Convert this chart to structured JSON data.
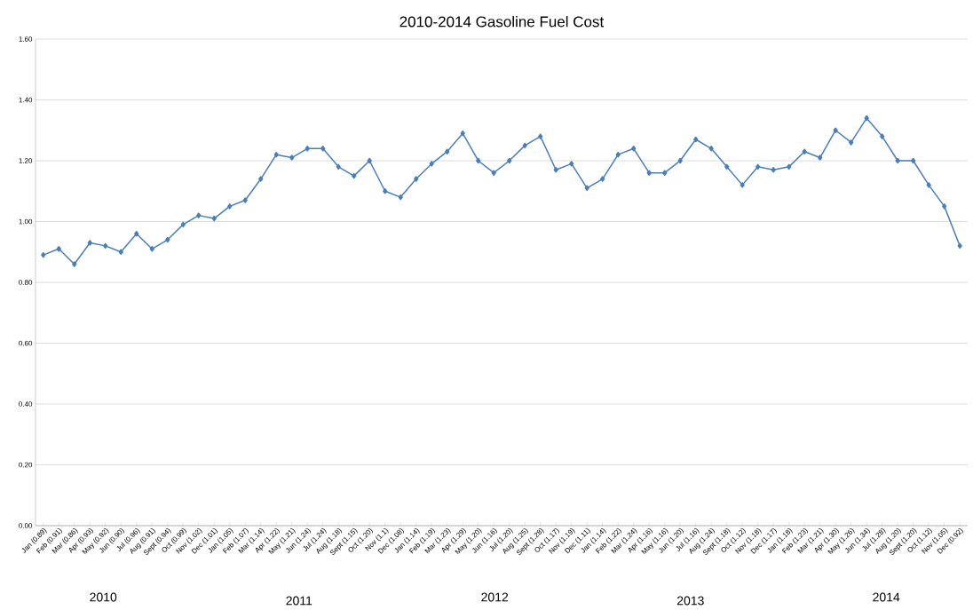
{
  "chart_data": {
    "type": "line",
    "title": "2010-2014 Gasoline Fuel Cost",
    "categories": [
      "Jan (0.89)",
      "Feb (0.91)",
      "Mar (0.86)",
      "Apr (0.93)",
      "May (0.92)",
      "Jun (0.90)",
      "Jul (0.96)",
      "Aug (0.91)",
      "Sept (0.94)",
      "Oct (0.99)",
      "Nov (1.02)",
      "Dec (1.01)",
      "Jan (1.05)",
      "Feb (1.07)",
      "Mar (1.14)",
      "Apr (1.22)",
      "May (1.21)",
      "Jun (1.24)",
      "Jul (1.24)",
      "Aug (1.18)",
      "Sept (1.15)",
      "Oct (1.20)",
      "Nov (1.1)",
      "Dec (1.08)",
      "Jan (1.14)",
      "Feb (1.19)",
      "Mar (1.23)",
      "Apr (1.29)",
      "May (1.20)",
      "Jun (1.16)",
      "Jul (1.20)",
      "Aug (1.25)",
      "Sept (1.28)",
      "Oct (1.17)",
      "Nov (1.19)",
      "Dec (1.11)",
      "Jan (1.14)",
      "Feb (1.22)",
      "Mar (1.24)",
      "Apr (1.16)",
      "May (1.16)",
      "Jun (1.20)",
      "Jul (1.16)",
      "Aug (1.24)",
      "Sept (1.18)",
      "Oct (1.12)",
      "Nov (1.18)",
      "Dec (1.17)",
      "Jan (1.18)",
      "Feb (1.23)",
      "Mar (1.21)",
      "Apr (1.30)",
      "May (1.26)",
      "Jun (1.34)",
      "Jul (1.28)",
      "Aug (1.20)",
      "Sept (1.20)",
      "Oct (1.12)",
      "Nov (1.05)",
      "Dec (0.92)"
    ],
    "series": [
      {
        "color": "#4a7ebb",
        "values": [
          0.89,
          0.91,
          0.86,
          0.93,
          0.92,
          0.9,
          0.96,
          0.91,
          0.94,
          0.99,
          1.02,
          1.01,
          1.05,
          1.07,
          1.14,
          1.22,
          1.21,
          1.24,
          1.24,
          1.18,
          1.15,
          1.2,
          1.1,
          1.08,
          1.14,
          1.19,
          1.23,
          1.29,
          1.2,
          1.16,
          1.2,
          1.25,
          1.28,
          1.17,
          1.19,
          1.11,
          1.14,
          1.22,
          1.24,
          1.16,
          1.16,
          1.2,
          1.27,
          1.24,
          1.18,
          1.12,
          1.18,
          1.17,
          1.18,
          1.23,
          1.21,
          1.3,
          1.26,
          1.34,
          1.28,
          1.2,
          1.2,
          1.12,
          1.05,
          0.92
        ]
      }
    ],
    "ylim": [
      0,
      1.6
    ],
    "yticks": [
      {
        "value": 0,
        "label": "0.00"
      },
      {
        "value": 0.2,
        "label": "0.20"
      },
      {
        "value": 0.4,
        "label": "0.40"
      },
      {
        "value": 0.6,
        "label": "0.60"
      },
      {
        "value": 0.8,
        "label": "0.80"
      },
      {
        "value": 1.0,
        "label": "1.00"
      },
      {
        "value": 1.2,
        "label": "1.20"
      },
      {
        "value": 1.4,
        "label": "1.40"
      },
      {
        "value": 1.6,
        "label": "1.60"
      }
    ],
    "annotations": [
      "2010",
      "2011",
      "2012",
      "2013",
      "2014"
    ],
    "grid": "y",
    "marker": "diamond",
    "line_style": "solid"
  }
}
